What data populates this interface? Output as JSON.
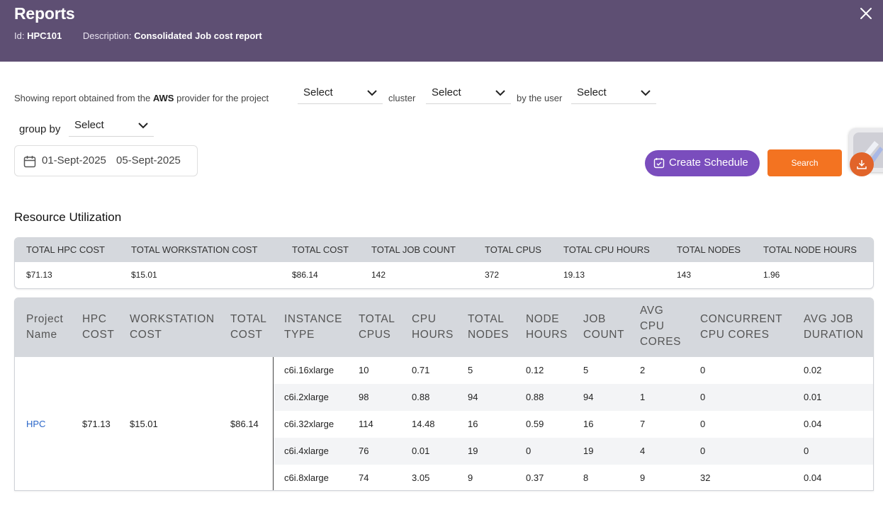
{
  "header": {
    "title": "Reports",
    "id_label": "Id:",
    "id_value": "HPC101",
    "desc_label": "Description:",
    "desc_value": "Consolidated Job cost report"
  },
  "filters": {
    "sentence_prefix": "Showing report obtained from the",
    "provider": "AWS",
    "sentence_mid": "provider for the project",
    "project_select": "Select",
    "cluster_label": "cluster",
    "cluster_select": "Select",
    "user_label": "by the user",
    "user_select": "Select",
    "group_by_label": "group by",
    "group_by_select": "Select",
    "date_start": "01-Sept-2025",
    "date_end": "05-Sept-2025"
  },
  "actions": {
    "create_schedule": "Create Schedule",
    "search": "Search"
  },
  "section_title": "Resource Utilization",
  "summary": {
    "headers": [
      "TOTAL HPC COST",
      "TOTAL WORKSTATION COST",
      "TOTAL COST",
      "TOTAL JOB COUNT",
      "TOTAL CPUS",
      "TOTAL CPU HOURS",
      "TOTAL NODES",
      "TOTAL NODE HOURS"
    ],
    "values": [
      "$71.13",
      "$15.01",
      "$86.14",
      "142",
      "372",
      "19.13",
      "143",
      "1.96"
    ]
  },
  "detail": {
    "headers": {
      "project_name": [
        "Project",
        "Name"
      ],
      "hpc_cost": [
        "HPC",
        "COST"
      ],
      "workstation_cost": [
        "WORKSTATION",
        "COST"
      ],
      "total_cost": [
        "TOTAL",
        "COST"
      ],
      "instance_type": [
        "INSTANCE",
        "TYPE"
      ],
      "total_cpus": [
        "TOTAL",
        "CPUS"
      ],
      "cpu_hours": [
        "CPU",
        "HOURS"
      ],
      "total_nodes": [
        "TOTAL",
        "NODES"
      ],
      "node_hours": [
        "NODE",
        "HOURS"
      ],
      "job_count": [
        "JOB",
        "COUNT"
      ],
      "avg_cpu_cores": [
        "AVG",
        "CPU",
        "CORES"
      ],
      "concurrent_cpu_cores": [
        "CONCURRENT",
        "CPU CORES"
      ],
      "avg_job_duration": [
        "AVG JOB",
        "DURATION"
      ]
    },
    "group": {
      "project": "HPC",
      "hpc_cost": "$71.13",
      "workstation_cost": "$15.01",
      "total_cost": "$86.14"
    },
    "rows": [
      {
        "instance": "c6i.16xlarge",
        "cpus": "10",
        "cpu_hours": "0.71",
        "nodes": "5",
        "node_hours": "0.12",
        "job_count": "5",
        "avg_cpu": "2",
        "concurrent": "0",
        "avg_job": "0.02"
      },
      {
        "instance": "c6i.2xlarge",
        "cpus": "98",
        "cpu_hours": "0.88",
        "nodes": "94",
        "node_hours": "0.88",
        "job_count": "94",
        "avg_cpu": "1",
        "concurrent": "0",
        "avg_job": "0.01"
      },
      {
        "instance": "c6i.32xlarge",
        "cpus": "114",
        "cpu_hours": "14.48",
        "nodes": "16",
        "node_hours": "0.59",
        "job_count": "16",
        "avg_cpu": "7",
        "concurrent": "0",
        "avg_job": "0.04"
      },
      {
        "instance": "c6i.4xlarge",
        "cpus": "76",
        "cpu_hours": "0.01",
        "nodes": "19",
        "node_hours": "0",
        "job_count": "19",
        "avg_cpu": "4",
        "concurrent": "0",
        "avg_job": "0"
      },
      {
        "instance": "c6i.8xlarge",
        "cpus": "74",
        "cpu_hours": "3.05",
        "nodes": "9",
        "node_hours": "0.37",
        "job_count": "8",
        "avg_cpu": "9",
        "concurrent": "32",
        "avg_job": "0.04"
      }
    ]
  },
  "colors": {
    "header_bg": "#5e4f73",
    "schedule_button": "#7a4dbd",
    "search_button": "#f37321",
    "link": "#2a66c9",
    "table_header_bg": "#d5d8dd"
  },
  "icons": [
    "close-icon",
    "chevron-down-icon",
    "calendar-icon",
    "calendar-check-icon",
    "download-icon"
  ]
}
